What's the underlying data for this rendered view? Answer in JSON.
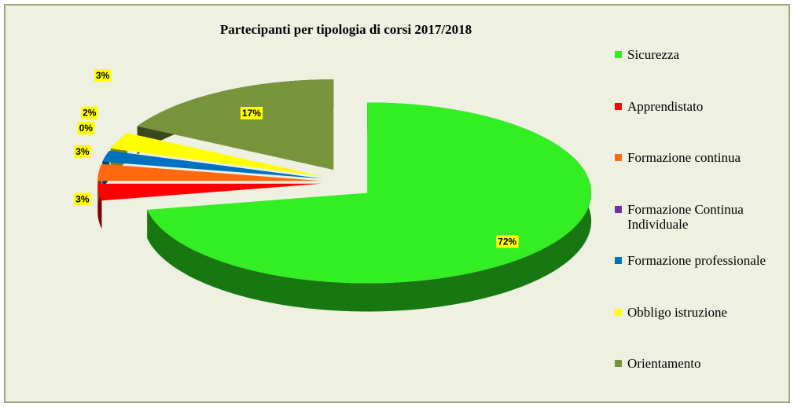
{
  "chart_data": {
    "type": "pie3d",
    "title": "Partecipanti per tipologia di corsi 2017/2018",
    "categories": [
      "Sicurezza",
      "Apprendistato",
      "Formazione continua",
      "Formazione Continua Individuale",
      "Formazione professionale",
      "Obbligo istruzione",
      "Orientamento"
    ],
    "values": [
      72,
      3,
      3,
      0,
      2,
      3,
      17
    ],
    "value_labels": [
      "72%",
      "3%",
      "3%",
      "0%",
      "2%",
      "3%",
      "17%"
    ],
    "colors": [
      "#33ee22",
      "#ff0000",
      "#ff6a10",
      "#7030a0",
      "#0070c0",
      "#ffff00",
      "#77933c"
    ],
    "legend": "right"
  }
}
